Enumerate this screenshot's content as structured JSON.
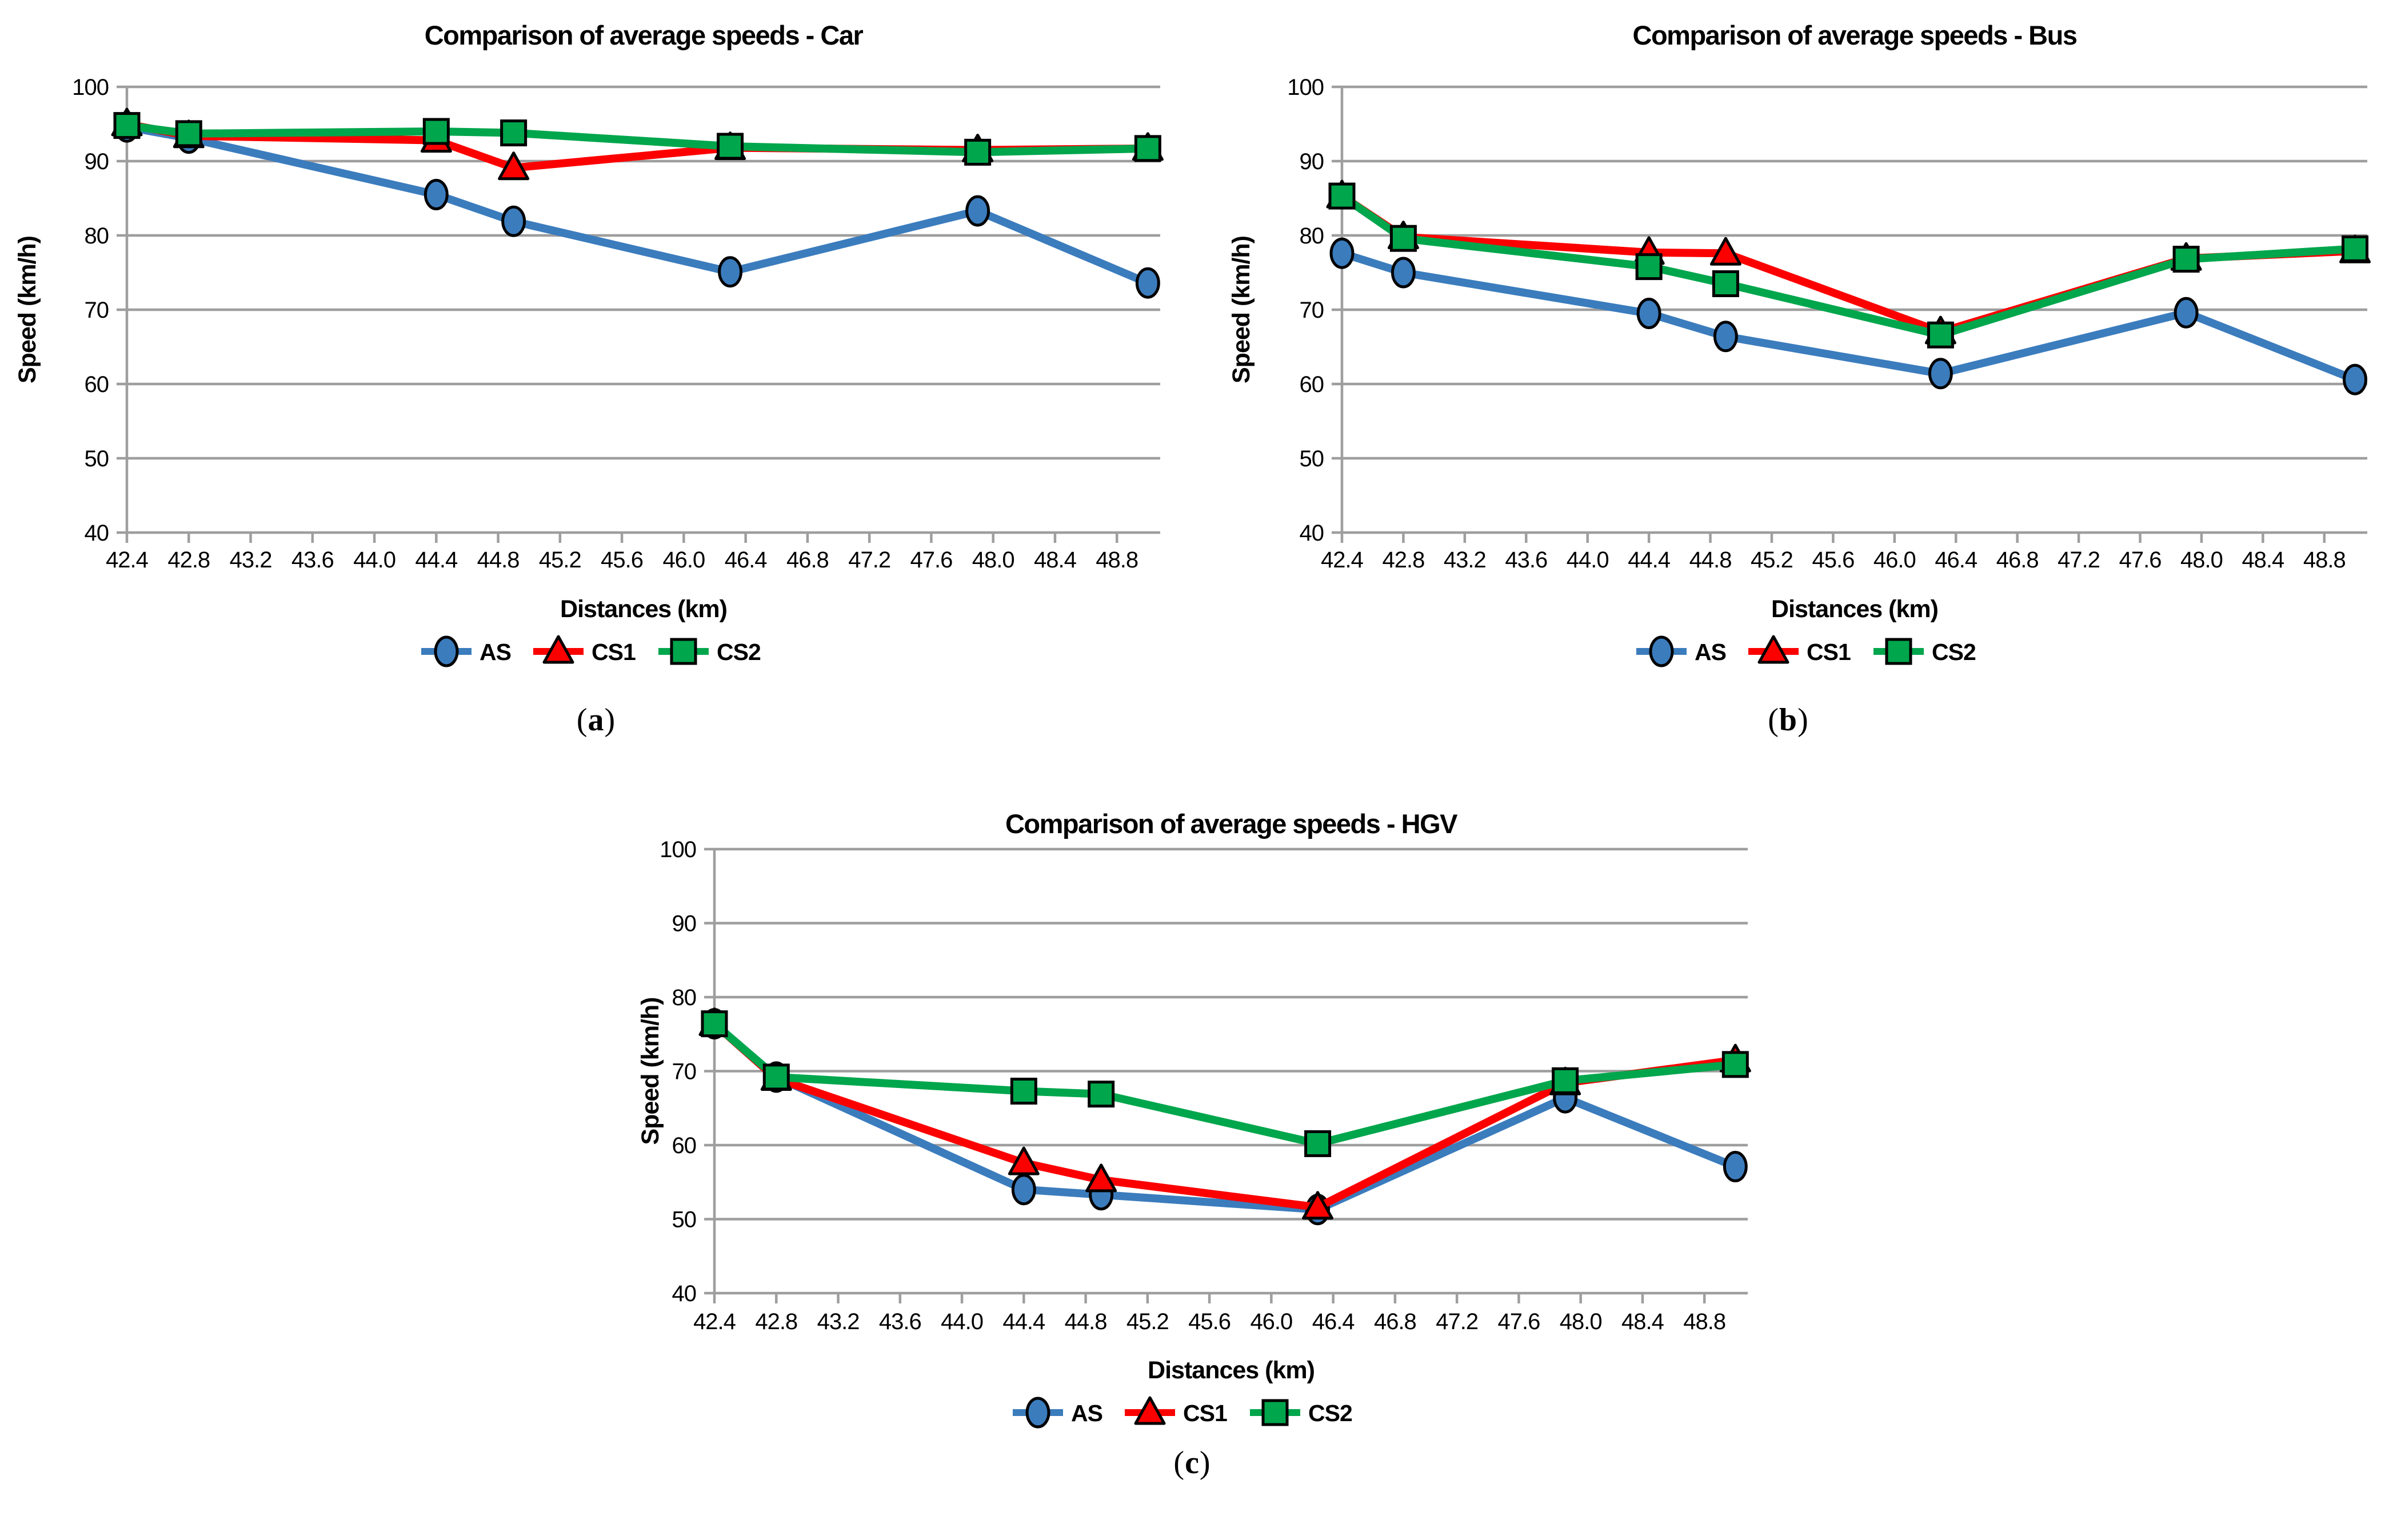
{
  "colors": {
    "as_blue": "#3B7CBD",
    "cs1_red": "#FC0000",
    "cs2_green": "#00A64C",
    "grid_gray": "#9E9E9E",
    "marker_outline": "#000000",
    "text": "#000000",
    "background": "#FFFFFF"
  },
  "panels": {
    "a": {
      "open": "(",
      "letter": "a",
      "close": ")"
    },
    "b": {
      "open": "(",
      "letter": "b",
      "close": ")"
    },
    "c": {
      "open": "(",
      "letter": "c",
      "close": ")"
    }
  },
  "chart_data": [
    {
      "id": "car",
      "type": "line",
      "title": "Comparison of average speeds - Car",
      "xlabel": "Distances (km)",
      "ylabel": "Speed (km/h)",
      "xlim": [
        42.4,
        49.08
      ],
      "ylim": [
        40,
        100
      ],
      "grid": "horizontal",
      "legend_position": "bottom",
      "yticks": [
        40,
        50,
        60,
        70,
        80,
        90,
        100
      ],
      "xtick_labels": [
        "42.4",
        "42.8",
        "43.2",
        "43.6",
        "44.0",
        "44.4",
        "44.8",
        "45.2",
        "45.6",
        "46.0",
        "46.4",
        "46.8",
        "47.2",
        "47.6",
        "48.0",
        "48.4",
        "48.8"
      ],
      "xtick_values": [
        42.4,
        42.8,
        43.2,
        43.6,
        44.0,
        44.4,
        44.8,
        45.2,
        45.6,
        46.0,
        46.4,
        46.8,
        47.2,
        47.6,
        48.0,
        48.4,
        48.8
      ],
      "x": [
        42.4,
        42.8,
        44.4,
        44.9,
        46.3,
        47.9,
        49.0
      ],
      "series": [
        {
          "name": "AS",
          "marker": "circle",
          "color": "#3B7CBD",
          "values": [
            94.6,
            93.1,
            85.5,
            81.9,
            75.1,
            83.3,
            73.6
          ]
        },
        {
          "name": "CS1",
          "marker": "triangle",
          "color": "#FC0000",
          "values": [
            95.0,
            93.4,
            92.8,
            89.1,
            91.8,
            91.5,
            91.7
          ]
        },
        {
          "name": "CS2",
          "marker": "square",
          "color": "#00A64C",
          "values": [
            94.8,
            93.7,
            94.0,
            93.8,
            92.0,
            91.2,
            91.7
          ]
        }
      ]
    },
    {
      "id": "bus",
      "type": "line",
      "title": "Comparison of average speeds - Bus",
      "xlabel": "Distances (km)",
      "ylabel": "Speed (km/h)",
      "xlim": [
        42.4,
        49.08
      ],
      "ylim": [
        40,
        100
      ],
      "grid": "horizontal",
      "legend_position": "bottom",
      "yticks": [
        40,
        50,
        60,
        70,
        80,
        90,
        100
      ],
      "xtick_labels": [
        "42.4",
        "42.8",
        "43.2",
        "43.6",
        "44.0",
        "44.4",
        "44.8",
        "45.2",
        "45.6",
        "46.0",
        "46.4",
        "46.8",
        "47.2",
        "47.6",
        "48.0",
        "48.4",
        "48.8"
      ],
      "xtick_values": [
        42.4,
        42.8,
        43.2,
        43.6,
        44.0,
        44.4,
        44.8,
        45.2,
        45.6,
        46.0,
        46.4,
        46.8,
        47.2,
        47.6,
        48.0,
        48.4,
        48.8
      ],
      "x": [
        42.4,
        42.8,
        44.4,
        44.9,
        46.3,
        47.9,
        49.0
      ],
      "series": [
        {
          "name": "AS",
          "marker": "circle",
          "color": "#3B7CBD",
          "values": [
            77.6,
            75.0,
            69.5,
            66.4,
            61.4,
            69.6,
            60.6
          ]
        },
        {
          "name": "CS1",
          "marker": "triangle",
          "color": "#FC0000",
          "values": [
            85.3,
            79.8,
            77.7,
            77.6,
            67.0,
            76.9,
            77.9
          ]
        },
        {
          "name": "CS2",
          "marker": "square",
          "color": "#00A64C",
          "values": [
            85.3,
            79.6,
            75.8,
            73.5,
            66.6,
            76.8,
            78.2
          ]
        }
      ]
    },
    {
      "id": "hgv",
      "type": "line",
      "title": "Comparison of average speeds - HGV",
      "xlabel": "Distances (km)",
      "ylabel": "Speed (km/h)",
      "xlim": [
        42.4,
        49.08
      ],
      "ylim": [
        40,
        100
      ],
      "grid": "horizontal",
      "legend_position": "bottom",
      "yticks": [
        40,
        50,
        60,
        70,
        80,
        90,
        100
      ],
      "xtick_labels": [
        "42.4",
        "42.8",
        "43.2",
        "43.6",
        "44.0",
        "44.4",
        "44.8",
        "45.2",
        "45.6",
        "46.0",
        "46.4",
        "46.8",
        "47.2",
        "47.6",
        "48.0",
        "48.4",
        "48.8"
      ],
      "xtick_values": [
        42.4,
        42.8,
        43.2,
        43.6,
        44.0,
        44.4,
        44.8,
        45.2,
        45.6,
        46.0,
        46.4,
        46.8,
        47.2,
        47.6,
        48.0,
        48.4,
        48.8
      ],
      "x": [
        42.4,
        42.8,
        44.4,
        44.9,
        46.3,
        47.9,
        49.0
      ],
      "series": [
        {
          "name": "AS",
          "marker": "circle",
          "color": "#3B7CBD",
          "values": [
            76.4,
            69.2,
            54.0,
            53.3,
            51.3,
            66.4,
            57.1
          ]
        },
        {
          "name": "CS1",
          "marker": "triangle",
          "color": "#FC0000",
          "values": [
            76.4,
            69.0,
            57.6,
            55.3,
            51.6,
            68.4,
            71.5
          ]
        },
        {
          "name": "CS2",
          "marker": "square",
          "color": "#00A64C",
          "values": [
            76.4,
            69.2,
            67.3,
            66.9,
            60.2,
            68.7,
            70.9
          ]
        }
      ]
    }
  ]
}
